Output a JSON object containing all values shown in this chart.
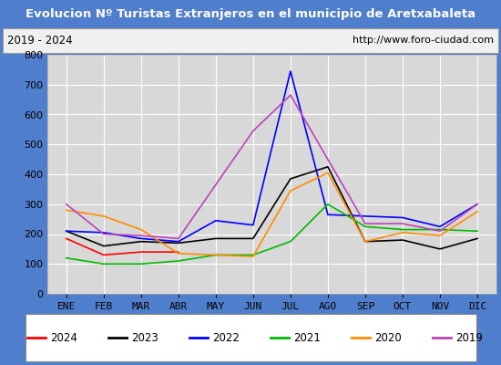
{
  "title": "Evolucion Nº Turistas Extranjeros en el municipio de Aretxabaleta",
  "subtitle_left": "2019 - 2024",
  "subtitle_right": "http://www.foro-ciudad.com",
  "title_bg_color": "#4f7fcc",
  "title_text_color": "#ffffff",
  "subtitle_bg_color": "#f0f0f0",
  "plot_bg_color": "#d8d8d8",
  "months": [
    "ENE",
    "FEB",
    "MAR",
    "ABR",
    "MAY",
    "JUN",
    "JUL",
    "AGO",
    "SEP",
    "OCT",
    "NOV",
    "DIC"
  ],
  "ylim": [
    0,
    800
  ],
  "yticks": [
    0,
    100,
    200,
    300,
    400,
    500,
    600,
    700,
    800
  ],
  "series": {
    "2024": {
      "color": "#ff0000",
      "values": [
        185,
        130,
        140,
        140,
        null,
        null,
        null,
        null,
        null,
        null,
        null,
        null
      ]
    },
    "2023": {
      "color": "#000000",
      "values": [
        210,
        160,
        175,
        170,
        185,
        185,
        385,
        425,
        175,
        180,
        150,
        185
      ]
    },
    "2022": {
      "color": "#0000ff",
      "values": [
        210,
        205,
        185,
        175,
        245,
        230,
        745,
        265,
        260,
        255,
        225,
        300
      ]
    },
    "2021": {
      "color": "#00bb00",
      "values": [
        120,
        100,
        100,
        110,
        130,
        130,
        175,
        300,
        225,
        215,
        215,
        210
      ]
    },
    "2020": {
      "color": "#ff8c00",
      "values": [
        280,
        260,
        215,
        135,
        130,
        125,
        345,
        405,
        175,
        205,
        195,
        275
      ]
    },
    "2019": {
      "color": "#bb44bb",
      "values": [
        300,
        200,
        195,
        185,
        null,
        545,
        665,
        null,
        235,
        235,
        210,
        300
      ]
    }
  },
  "legend_order": [
    "2024",
    "2023",
    "2022",
    "2021",
    "2020",
    "2019"
  ],
  "grid_color": "#ffffff",
  "outer_bg_color": "#4f7fcc"
}
